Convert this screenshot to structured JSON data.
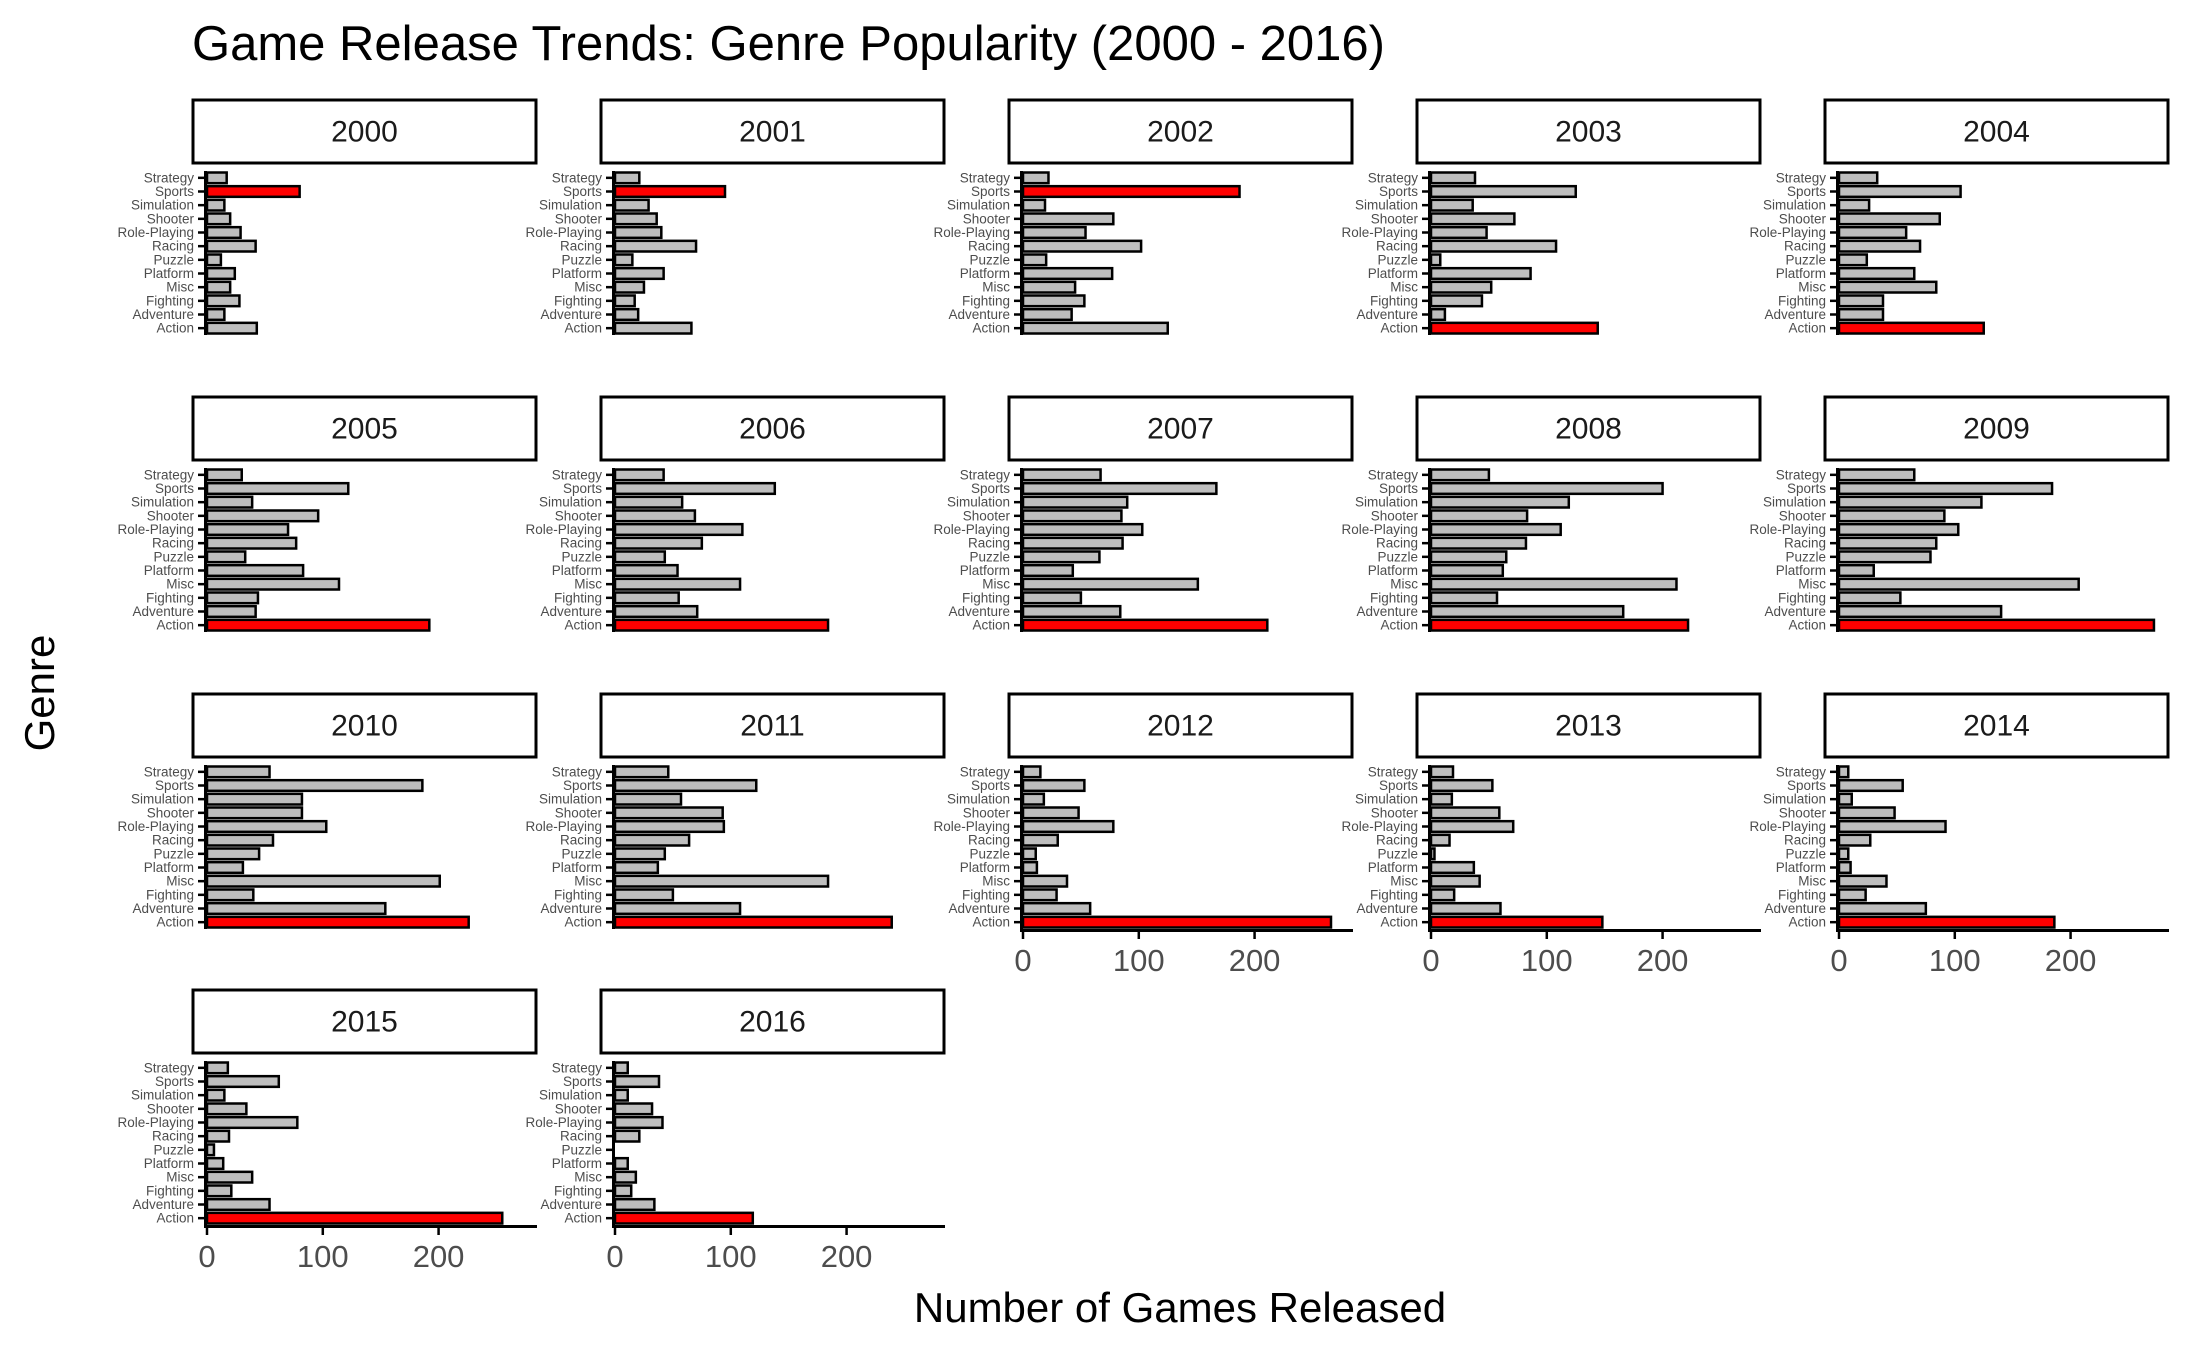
{
  "colors": {
    "highlight": "#ff0000",
    "bar": "#bebebe",
    "outline": "#000000",
    "background": "#ffffff"
  },
  "chart_data": {
    "type": "bar",
    "orientation": "horizontal",
    "facet": "year",
    "title": "Game Release Trends: Genre Popularity (2000 - 2016)",
    "xlabel": "Number of Games Released",
    "ylabel": "Genre",
    "xlim": [
      0,
      285
    ],
    "x_ticks": [
      0,
      100,
      200
    ],
    "grid": false,
    "legend": "none",
    "highlight_rule": "max genre per year",
    "genres": [
      "Action",
      "Adventure",
      "Fighting",
      "Misc",
      "Platform",
      "Puzzle",
      "Racing",
      "Role-Playing",
      "Shooter",
      "Simulation",
      "Sports",
      "Strategy"
    ],
    "panels": [
      {
        "year": "2000",
        "values": [
          43,
          15,
          28,
          20,
          24,
          12,
          42,
          29,
          20,
          15,
          80,
          17
        ]
      },
      {
        "year": "2001",
        "values": [
          66,
          20,
          17,
          25,
          42,
          15,
          70,
          40,
          36,
          29,
          95,
          21
        ]
      },
      {
        "year": "2002",
        "values": [
          125,
          42,
          53,
          45,
          77,
          20,
          102,
          54,
          78,
          19,
          187,
          22
        ]
      },
      {
        "year": "2003",
        "values": [
          144,
          12,
          44,
          52,
          86,
          8,
          108,
          48,
          72,
          36,
          125,
          38
        ]
      },
      {
        "year": "2004",
        "values": [
          125,
          38,
          38,
          84,
          65,
          24,
          70,
          58,
          87,
          26,
          105,
          33
        ]
      },
      {
        "year": "2005",
        "values": [
          192,
          42,
          44,
          114,
          83,
          33,
          77,
          70,
          96,
          39,
          122,
          30
        ]
      },
      {
        "year": "2006",
        "values": [
          184,
          71,
          55,
          108,
          54,
          43,
          75,
          110,
          69,
          58,
          138,
          42
        ]
      },
      {
        "year": "2007",
        "values": [
          211,
          84,
          50,
          151,
          43,
          66,
          86,
          103,
          85,
          90,
          167,
          67
        ]
      },
      {
        "year": "2008",
        "values": [
          222,
          166,
          57,
          212,
          62,
          65,
          82,
          112,
          83,
          119,
          200,
          50
        ]
      },
      {
        "year": "2009",
        "values": [
          272,
          140,
          53,
          207,
          30,
          79,
          84,
          103,
          91,
          123,
          184,
          65
        ]
      },
      {
        "year": "2010",
        "values": [
          226,
          154,
          40,
          201,
          31,
          45,
          57,
          103,
          82,
          82,
          186,
          54
        ]
      },
      {
        "year": "2011",
        "values": [
          239,
          108,
          50,
          184,
          37,
          43,
          64,
          94,
          93,
          57,
          122,
          46
        ]
      },
      {
        "year": "2012",
        "values": [
          266,
          58,
          29,
          38,
          12,
          11,
          30,
          78,
          48,
          18,
          53,
          15
        ]
      },
      {
        "year": "2013",
        "values": [
          148,
          60,
          20,
          42,
          37,
          3,
          16,
          71,
          59,
          18,
          53,
          19
        ]
      },
      {
        "year": "2014",
        "values": [
          186,
          75,
          23,
          41,
          10,
          8,
          27,
          92,
          48,
          11,
          55,
          8
        ]
      },
      {
        "year": "2015",
        "values": [
          255,
          54,
          21,
          39,
          14,
          6,
          19,
          78,
          34,
          15,
          62,
          18
        ]
      },
      {
        "year": "2016",
        "values": [
          119,
          34,
          14,
          18,
          11,
          0,
          21,
          41,
          32,
          11,
          38,
          11
        ]
      }
    ]
  }
}
